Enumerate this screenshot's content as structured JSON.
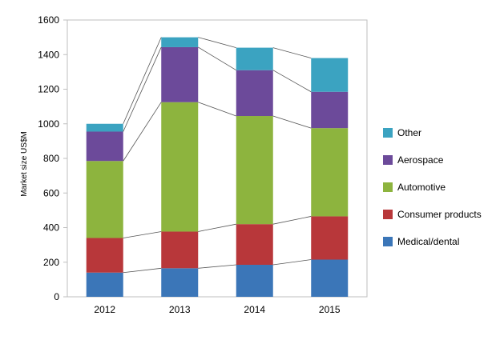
{
  "chart_data": {
    "type": "bar",
    "stacked": true,
    "title": "",
    "xlabel": "",
    "ylabel": "Market size US$M",
    "categories": [
      "2012",
      "2013",
      "2014",
      "2015"
    ],
    "ylim": [
      0,
      1600
    ],
    "yticks": [
      0,
      200,
      400,
      600,
      800,
      1000,
      1200,
      1400,
      1600
    ],
    "grid": false,
    "legend_position": "right",
    "connector_lines": true,
    "series": [
      {
        "name": "Medical/dental",
        "color": "#3B76B8",
        "values": [
          140,
          165,
          185,
          215
        ]
      },
      {
        "name": "Consumer products",
        "color": "#B8373A",
        "values": [
          200,
          212,
          235,
          250
        ]
      },
      {
        "name": "Automotive",
        "color": "#8DB43E",
        "values": [
          445,
          748,
          625,
          510
        ]
      },
      {
        "name": "Aerospace",
        "color": "#6C4A9A",
        "values": [
          170,
          318,
          265,
          210
        ]
      },
      {
        "name": "Other",
        "color": "#3BA3C1",
        "values": [
          45,
          57,
          130,
          195
        ]
      }
    ]
  }
}
